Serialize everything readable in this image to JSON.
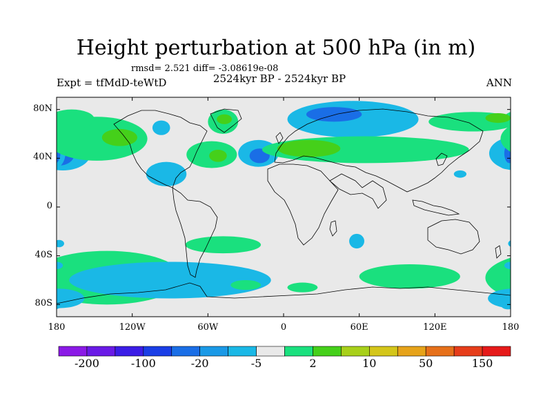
{
  "title": "Height perturbation at 500 hPa (in m)",
  "stats": "rmsd= 2.521  diff= -3.08619e-08",
  "experiment": "Expt = tfMdD-teWtD",
  "period": "2524kyr BP - 2524kyr BP",
  "season": "ANN",
  "map_data": {
    "type": "filled-contour-map",
    "variable": "Height perturbation at 500 hPa",
    "units": "m",
    "lat_range": [
      -90,
      90
    ],
    "lon_range": [
      -180,
      180
    ],
    "lat_labels": [
      {
        "value": 80,
        "label": "80N"
      },
      {
        "value": 40,
        "label": "40N"
      },
      {
        "value": 0,
        "label": "0"
      },
      {
        "value": -40,
        "label": "40S"
      },
      {
        "value": -80,
        "label": "80S"
      }
    ],
    "lon_labels": [
      {
        "value": -180,
        "label": "180"
      },
      {
        "value": -120,
        "label": "120W"
      },
      {
        "value": -60,
        "label": "60W"
      },
      {
        "value": 0,
        "label": "0"
      },
      {
        "value": 60,
        "label": "60E"
      },
      {
        "value": 120,
        "label": "120E"
      },
      {
        "value": 180,
        "label": "180"
      }
    ],
    "background_color": "#e9e9e9",
    "anomaly_regions": [
      {
        "name": "north-pacific-negative",
        "lon": -175,
        "lat": 44,
        "rx": 22,
        "ry": 14,
        "level": -5
      },
      {
        "name": "north-pacific-core",
        "lon": -178,
        "lat": 43,
        "rx": 12,
        "ry": 9,
        "level": -20
      },
      {
        "name": "north-pacific-inner",
        "lon": -180,
        "lat": 42,
        "rx": 6,
        "ry": 5,
        "level": -100
      },
      {
        "name": "west-pacific-negative",
        "lon": 177,
        "lat": 44,
        "rx": 10,
        "ry": 13,
        "level": -5
      },
      {
        "name": "west-pacific-core",
        "lon": 179,
        "lat": 44,
        "rx": 4,
        "ry": 8,
        "level": -20
      },
      {
        "name": "alaska-positive",
        "lon": -148,
        "lat": 56,
        "rx": 40,
        "ry": 18,
        "level": 2
      },
      {
        "name": "alaska-core",
        "lon": -130,
        "lat": 57,
        "rx": 14,
        "ry": 7,
        "level": 10
      },
      {
        "name": "pacific-high-lat-positive",
        "lon": -168,
        "lat": 72,
        "rx": 18,
        "ry": 8,
        "level": 2
      },
      {
        "name": "north-america-negative",
        "lon": -93,
        "lat": 27,
        "rx": 16,
        "ry": 10,
        "level": -5
      },
      {
        "name": "labrador-negative",
        "lon": -97,
        "lat": 65,
        "rx": 7,
        "ry": 6,
        "level": -5
      },
      {
        "name": "greenland-positive",
        "lon": -48,
        "lat": 70,
        "rx": 12,
        "ry": 10,
        "level": 2
      },
      {
        "name": "greenland-core",
        "lon": -47,
        "lat": 72,
        "rx": 6,
        "ry": 4,
        "level": 10
      },
      {
        "name": "atlantic-positive",
        "lon": -57,
        "lat": 43,
        "rx": 20,
        "ry": 11,
        "level": 2
      },
      {
        "name": "atlantic-core",
        "lon": -52,
        "lat": 42,
        "rx": 7,
        "ry": 5,
        "level": 10
      },
      {
        "name": "north-atlantic-negative",
        "lon": -20,
        "lat": 44,
        "rx": 16,
        "ry": 11,
        "level": -5
      },
      {
        "name": "north-atlantic-core",
        "lon": -19,
        "lat": 42,
        "rx": 8,
        "ry": 6,
        "level": -20
      },
      {
        "name": "arctic-negative",
        "lon": 55,
        "lat": 72,
        "rx": 52,
        "ry": 15,
        "level": -5
      },
      {
        "name": "arctic-core",
        "lon": 40,
        "lat": 76,
        "rx": 22,
        "ry": 6,
        "level": -20
      },
      {
        "name": "eurasia-positive",
        "lon": 65,
        "lat": 47,
        "rx": 82,
        "ry": 11,
        "level": 2
      },
      {
        "name": "europe-core",
        "lon": 20,
        "lat": 48,
        "rx": 25,
        "ry": 7,
        "level": 10
      },
      {
        "name": "east-asia-positive",
        "lon": 150,
        "lat": 70,
        "rx": 35,
        "ry": 8,
        "level": 2
      },
      {
        "name": "east-asia-core",
        "lon": 170,
        "lat": 73,
        "rx": 10,
        "ry": 4,
        "level": 10
      },
      {
        "name": "west-pacific-small-negative",
        "lon": 140,
        "lat": 27,
        "rx": 5,
        "ry": 3,
        "level": -5
      },
      {
        "name": "south-atlantic-positive",
        "lon": -48,
        "lat": -31,
        "rx": 30,
        "ry": 7,
        "level": 2
      },
      {
        "name": "indian-ocean-negative",
        "lon": 58,
        "lat": -28,
        "rx": 6,
        "ry": 6,
        "level": -5
      },
      {
        "name": "southern-pacific-positive",
        "lon": -140,
        "lat": -58,
        "rx": 60,
        "ry": 22,
        "level": 2
      },
      {
        "name": "southern-pacific-negative",
        "lon": -90,
        "lat": -60,
        "rx": 80,
        "ry": 15,
        "level": -5
      },
      {
        "name": "south-pacific-west-negative",
        "lon": -178,
        "lat": -75,
        "rx": 20,
        "ry": 8,
        "level": -5
      },
      {
        "name": "south-indian-positive",
        "lon": 100,
        "lat": -57,
        "rx": 40,
        "ry": 10,
        "level": 2
      },
      {
        "name": "south-atlantic-small-positive",
        "lon": -30,
        "lat": -64,
        "rx": 12,
        "ry": 4,
        "level": 2
      },
      {
        "name": "south-atlantic-small-positive-2",
        "lon": 15,
        "lat": -66,
        "rx": 12,
        "ry": 4,
        "level": 2
      },
      {
        "name": "pacific-small-negative",
        "lon": -178,
        "lat": -30,
        "rx": 4,
        "ry": 3,
        "level": -5
      },
      {
        "name": "pacific-small-negative-2",
        "lon": -180,
        "lat": -48,
        "rx": 5,
        "ry": 3,
        "level": -5
      },
      {
        "name": "antarctic-coast-negative",
        "lon": 178,
        "lat": -80,
        "rx": 6,
        "ry": 4,
        "level": -5
      }
    ]
  },
  "colorbar": {
    "colors": [
      "#8b1ae6",
      "#6a1ae6",
      "#3b1de6",
      "#1a3ee6",
      "#1a6ee6",
      "#1a99e6",
      "#1ab8e6",
      "#e9e9e9",
      "#1ae07e",
      "#45d01a",
      "#a8d01a",
      "#d4c61a",
      "#e6a31a",
      "#e6701a",
      "#e63d1a",
      "#e61a1a"
    ],
    "labels": [
      "-200",
      "-100",
      "-20",
      "-5",
      "2",
      "10",
      "50",
      "150"
    ],
    "level_colors": {
      "-100": "#3b1de6",
      "-20": "#1a6ee6",
      "-5": "#1ab8e6",
      "2": "#1ae07e",
      "10": "#45d01a"
    }
  }
}
